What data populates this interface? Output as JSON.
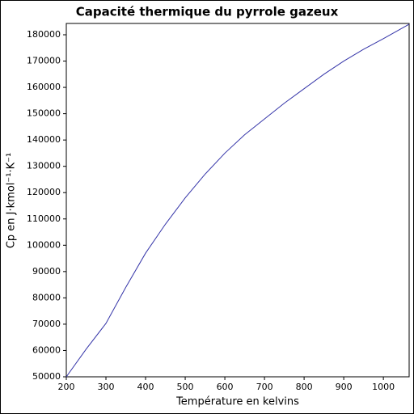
{
  "chart_data": {
    "type": "line",
    "title": "Capacité thermique du pyrrole gazeux",
    "x_label": "Température en kelvins",
    "y_label": "Cp en J·kmol⁻¹·K⁻¹",
    "x": [
      200,
      250,
      300,
      350,
      400,
      450,
      500,
      550,
      600,
      650,
      700,
      750,
      800,
      850,
      900,
      950,
      1000,
      1065
    ],
    "series": [
      {
        "name": "Cp",
        "color": "#3434a8",
        "values": [
          50000,
          60500,
          70300,
          84000,
          97000,
          108000,
          118000,
          127000,
          135000,
          142000,
          148000,
          154000,
          159500,
          165000,
          170000,
          174500,
          178500,
          184000
        ]
      }
    ],
    "xlim": [
      200,
      1065
    ],
    "ylim": [
      50000,
      184300
    ],
    "xticks": [
      200,
      300,
      400,
      500,
      600,
      700,
      800,
      900,
      1000
    ],
    "yticks": [
      50000,
      60000,
      70000,
      80000,
      90000,
      100000,
      110000,
      120000,
      130000,
      140000,
      150000,
      160000,
      170000,
      180000
    ],
    "grid": false
  }
}
